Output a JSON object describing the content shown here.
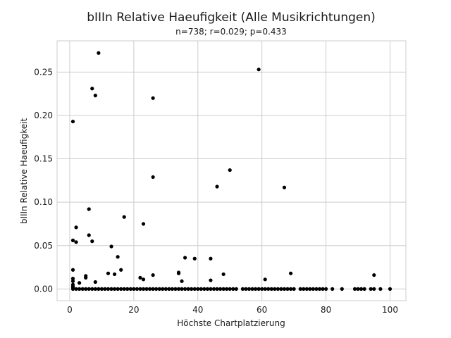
{
  "chart_data": {
    "type": "scatter",
    "title": "bIIIn Relative Haeufigkeit (Alle Musikrichtungen)",
    "subtitle": "n=738; r=0.029; p=0.433",
    "xlabel": "Höchste Chartplatzierung",
    "ylabel": "bIIIn Relative Haeufigkeit",
    "xlim": [
      -3.95,
      104.95
    ],
    "ylim": [
      -0.0135,
      0.286
    ],
    "xticks": [
      0,
      20,
      40,
      60,
      80,
      100
    ],
    "yticks": [
      0.0,
      0.05,
      0.1,
      0.15,
      0.2,
      0.25
    ],
    "xtick_labels": [
      "0",
      "20",
      "40",
      "60",
      "80",
      "100"
    ],
    "ytick_labels": [
      "0.00",
      "0.05",
      "0.10",
      "0.15",
      "0.20",
      "0.25"
    ],
    "grid": true,
    "point_color": "#000000",
    "points": [
      [
        9,
        0.272
      ],
      [
        59,
        0.253
      ],
      [
        7,
        0.231
      ],
      [
        8,
        0.223
      ],
      [
        26,
        0.22
      ],
      [
        1,
        0.193
      ],
      [
        50,
        0.137
      ],
      [
        26,
        0.129
      ],
      [
        46,
        0.118
      ],
      [
        67,
        0.117
      ],
      [
        6,
        0.092
      ],
      [
        17,
        0.083
      ],
      [
        23,
        0.075
      ],
      [
        2,
        0.071
      ],
      [
        6,
        0.062
      ],
      [
        1,
        0.056
      ],
      [
        7,
        0.055
      ],
      [
        2,
        0.054
      ],
      [
        13,
        0.049
      ],
      [
        15,
        0.037
      ],
      [
        36,
        0.036
      ],
      [
        39,
        0.035
      ],
      [
        44,
        0.035
      ],
      [
        16,
        0.022
      ],
      [
        1,
        0.022
      ],
      [
        12,
        0.018
      ],
      [
        14,
        0.017
      ],
      [
        34,
        0.018
      ],
      [
        34,
        0.019
      ],
      [
        48,
        0.017
      ],
      [
        69,
        0.018
      ],
      [
        26,
        0.016
      ],
      [
        95,
        0.016
      ],
      [
        5,
        0.015
      ],
      [
        5,
        0.013
      ],
      [
        22,
        0.013
      ],
      [
        23,
        0.011
      ],
      [
        61,
        0.011
      ],
      [
        35,
        0.009
      ],
      [
        44,
        0.01
      ],
      [
        1,
        0.012
      ],
      [
        1,
        0.009
      ],
      [
        3,
        0.007
      ],
      [
        8,
        0.008
      ],
      [
        1,
        0.005
      ],
      [
        1,
        0.003
      ],
      [
        1,
        0.002
      ],
      [
        1,
        0.0
      ],
      [
        2,
        0.0
      ],
      [
        3,
        0.0
      ],
      [
        4,
        0.0
      ],
      [
        5,
        0.0
      ],
      [
        6,
        0.0
      ],
      [
        7,
        0.0
      ],
      [
        8,
        0.0
      ],
      [
        9,
        0.0
      ],
      [
        10,
        0.0
      ],
      [
        11,
        0.0
      ],
      [
        12,
        0.0
      ],
      [
        13,
        0.0
      ],
      [
        14,
        0.0
      ],
      [
        15,
        0.0
      ],
      [
        16,
        0.0
      ],
      [
        17,
        0.0
      ],
      [
        18,
        0.0
      ],
      [
        19,
        0.0
      ],
      [
        20,
        0.0
      ],
      [
        21,
        0.0
      ],
      [
        22,
        0.0
      ],
      [
        23,
        0.0
      ],
      [
        24,
        0.0
      ],
      [
        25,
        0.0
      ],
      [
        26,
        0.0
      ],
      [
        27,
        0.0
      ],
      [
        28,
        0.0
      ],
      [
        29,
        0.0
      ],
      [
        30,
        0.0
      ],
      [
        31,
        0.0
      ],
      [
        32,
        0.0
      ],
      [
        33,
        0.0
      ],
      [
        34,
        0.0
      ],
      [
        35,
        0.0
      ],
      [
        36,
        0.0
      ],
      [
        37,
        0.0
      ],
      [
        38,
        0.0
      ],
      [
        39,
        0.0
      ],
      [
        40,
        0.0
      ],
      [
        41,
        0.0
      ],
      [
        42,
        0.0
      ],
      [
        43,
        0.0
      ],
      [
        44,
        0.0
      ],
      [
        45,
        0.0
      ],
      [
        46,
        0.0
      ],
      [
        47,
        0.0
      ],
      [
        48,
        0.0
      ],
      [
        49,
        0.0
      ],
      [
        50,
        0.0
      ],
      [
        51,
        0.0
      ],
      [
        52,
        0.0
      ],
      [
        54,
        0.0
      ],
      [
        55,
        0.0
      ],
      [
        56,
        0.0
      ],
      [
        57,
        0.0
      ],
      [
        58,
        0.0
      ],
      [
        59,
        0.0
      ],
      [
        60,
        0.0
      ],
      [
        61,
        0.0
      ],
      [
        62,
        0.0
      ],
      [
        63,
        0.0
      ],
      [
        64,
        0.0
      ],
      [
        65,
        0.0
      ],
      [
        66,
        0.0
      ],
      [
        67,
        0.0
      ],
      [
        68,
        0.0
      ],
      [
        69,
        0.0
      ],
      [
        70,
        0.0
      ],
      [
        72,
        0.0
      ],
      [
        73,
        0.0
      ],
      [
        74,
        0.0
      ],
      [
        75,
        0.0
      ],
      [
        76,
        0.0
      ],
      [
        77,
        0.0
      ],
      [
        78,
        0.0
      ],
      [
        79,
        0.0
      ],
      [
        80,
        0.0
      ],
      [
        82,
        0.0
      ],
      [
        85,
        0.0
      ],
      [
        89,
        0.0
      ],
      [
        90,
        0.0
      ],
      [
        91,
        0.0
      ],
      [
        92,
        0.0
      ],
      [
        94,
        0.0
      ],
      [
        95,
        0.0
      ],
      [
        97,
        0.0
      ],
      [
        100,
        0.0
      ]
    ]
  }
}
